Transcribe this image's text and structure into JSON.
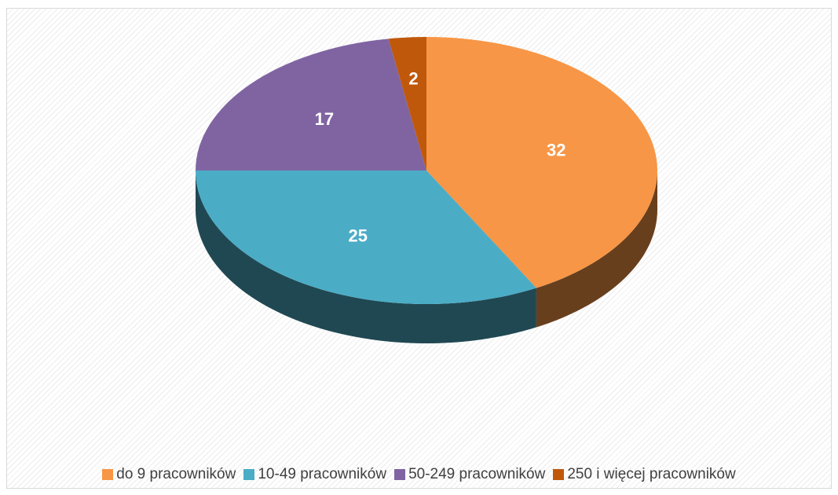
{
  "chart_data": {
    "type": "pie",
    "title": "",
    "series": [
      {
        "label": "do 9 pracowników",
        "value": 32,
        "color": "#F79646"
      },
      {
        "label": "10-49 pracowników",
        "value": 25,
        "color": "#4BACC6"
      },
      {
        "label": "50-249 pracowników",
        "value": 17,
        "color": "#8064A2"
      },
      {
        "label": "250 i więcej pracowników",
        "value": 2,
        "color": "#C0580B"
      }
    ],
    "legend_position": "bottom",
    "style": "3d"
  }
}
